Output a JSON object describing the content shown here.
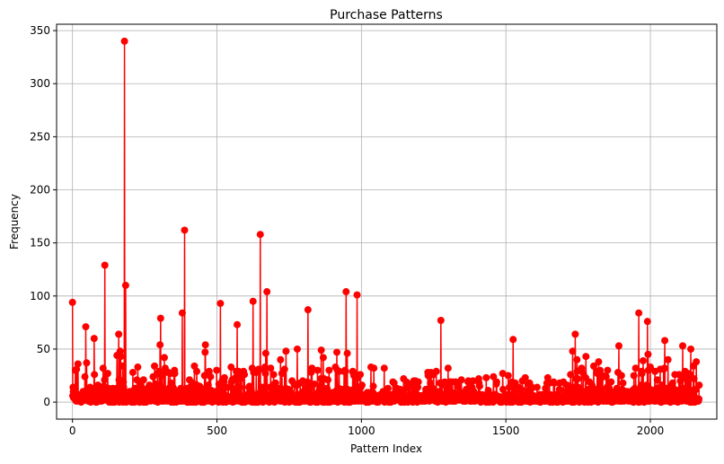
{
  "chart_data": {
    "type": "line",
    "title": "Purchase Patterns",
    "xlabel": "Pattern Index",
    "ylabel": "Frequency",
    "xlim": [
      -55,
      2230
    ],
    "ylim": [
      -16,
      356
    ],
    "xticks": [
      0,
      500,
      1000,
      1500,
      2000
    ],
    "yticks": [
      0,
      50,
      100,
      150,
      200,
      250,
      300,
      350
    ],
    "grid": true,
    "marker": "circle",
    "color": "#ff0000",
    "n_points": 2170,
    "notable_points": [
      {
        "x": 0,
        "y": 94
      },
      {
        "x": 46,
        "y": 71
      },
      {
        "x": 75,
        "y": 60
      },
      {
        "x": 112,
        "y": 129
      },
      {
        "x": 160,
        "y": 64
      },
      {
        "x": 180,
        "y": 340
      },
      {
        "x": 184,
        "y": 110
      },
      {
        "x": 305,
        "y": 79
      },
      {
        "x": 380,
        "y": 84
      },
      {
        "x": 388,
        "y": 162
      },
      {
        "x": 512,
        "y": 93
      },
      {
        "x": 570,
        "y": 73
      },
      {
        "x": 625,
        "y": 95
      },
      {
        "x": 650,
        "y": 158
      },
      {
        "x": 673,
        "y": 104
      },
      {
        "x": 815,
        "y": 87
      },
      {
        "x": 947,
        "y": 104
      },
      {
        "x": 985,
        "y": 101
      },
      {
        "x": 1275,
        "y": 77
      },
      {
        "x": 1525,
        "y": 59
      },
      {
        "x": 1740,
        "y": 64
      },
      {
        "x": 1960,
        "y": 84
      },
      {
        "x": 1990,
        "y": 76
      },
      {
        "x": 2050,
        "y": 58
      },
      {
        "x": 2140,
        "y": 50
      }
    ]
  }
}
